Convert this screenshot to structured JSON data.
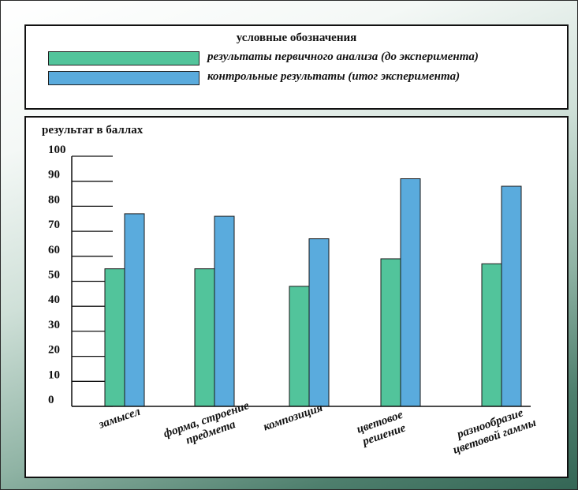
{
  "legend": {
    "title": "условные обозначения",
    "items": [
      {
        "label": "результаты первичного анализа (до эксперимента)",
        "color": "#52c49b"
      },
      {
        "label": "контрольные результаты (итог эксперимента)",
        "color": "#5aabdd"
      }
    ]
  },
  "chart_data": {
    "type": "bar",
    "ylabel": "результат в баллах",
    "ylim": [
      0,
      100
    ],
    "yticks": [
      "0",
      "10",
      "20",
      "30",
      "40",
      "50",
      "60",
      "70",
      "80",
      "90",
      "100"
    ],
    "categories": [
      [
        "замысел"
      ],
      [
        "форма, строение",
        "предмета"
      ],
      [
        "композиция"
      ],
      [
        "цветовое",
        "решение"
      ],
      [
        "разнообразие",
        "цветовой гаммы"
      ]
    ],
    "series": [
      {
        "name": "результаты первичного анализа (до эксперимента)",
        "color": "#52c49b",
        "values": [
          55,
          55,
          48,
          59,
          57
        ]
      },
      {
        "name": "контрольные результаты (итог эксперимента)",
        "color": "#5aabdd",
        "values": [
          77,
          76,
          67,
          91,
          88
        ]
      }
    ]
  }
}
